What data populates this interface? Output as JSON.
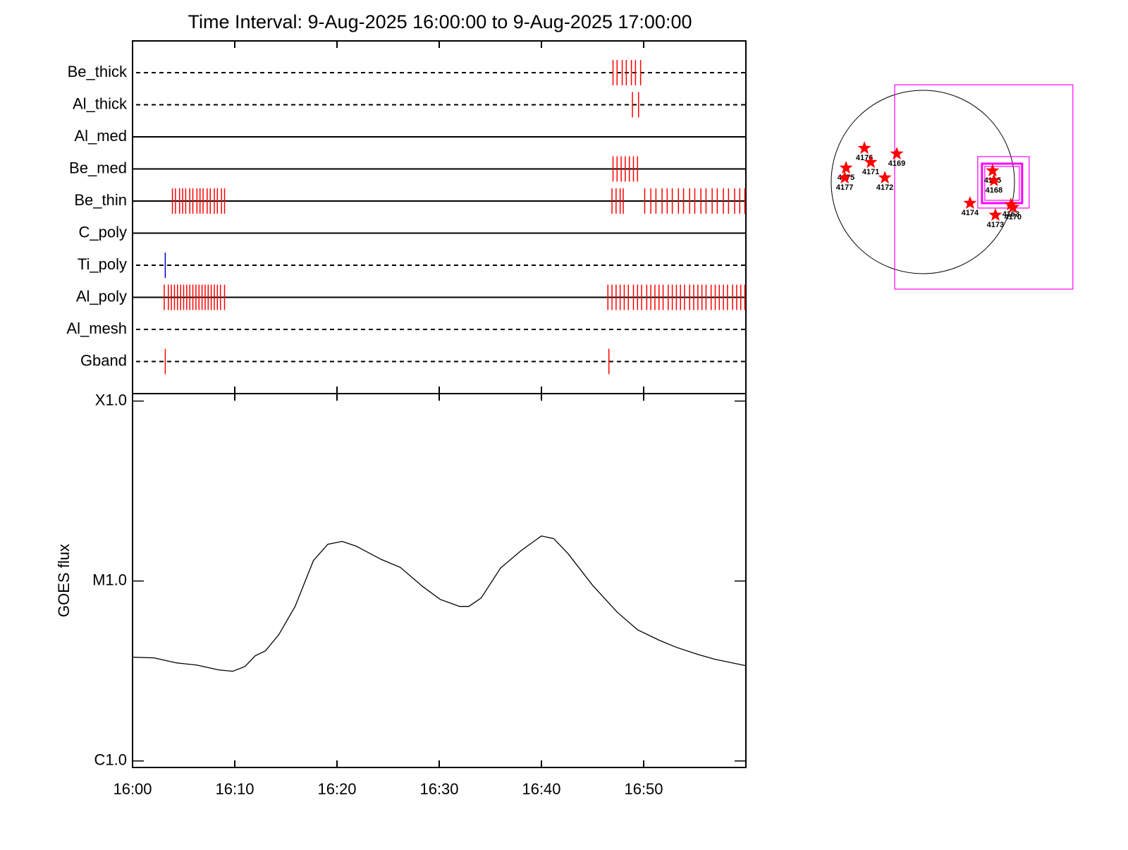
{
  "chart_data": [
    {
      "type": "event",
      "title": "Time Interval:  9-Aug-2025 16:00:00 to  9-Aug-2025 17:00:00",
      "xlim": [
        0,
        60
      ],
      "xticks": [
        0,
        10,
        20,
        30,
        40,
        50,
        60
      ],
      "rows": [
        {
          "name": "Be_thick",
          "style": "dashed",
          "color": "#ff0000",
          "events": [
            47.0,
            47.4,
            47.9,
            48.3,
            48.8,
            49.2,
            49.7
          ]
        },
        {
          "name": "Al_thick",
          "style": "dashed",
          "color": "#ff0000",
          "events": [
            48.9,
            49.5
          ]
        },
        {
          "name": "Al_med",
          "style": "solid",
          "color": "#ff0000",
          "events": []
        },
        {
          "name": "Be_med",
          "style": "solid",
          "color": "#ff0000",
          "events": [
            47.0,
            47.4,
            47.8,
            48.2,
            48.6,
            49.0,
            49.4
          ]
        },
        {
          "name": "Be_thin",
          "style": "solid",
          "color": "#ff0000",
          "events": [
            3.9,
            4.2,
            4.6,
            4.9,
            5.2,
            5.6,
            5.9,
            6.3,
            6.6,
            6.9,
            7.3,
            7.6,
            8.0,
            8.3,
            8.7,
            9.0,
            46.9,
            47.3,
            47.7,
            48.0,
            50.1,
            50.7,
            51.2,
            51.8,
            52.3,
            52.8,
            53.4,
            53.9,
            54.5,
            55.0,
            55.6,
            56.1,
            56.7,
            57.2,
            57.8,
            58.3,
            58.9,
            59.4,
            59.9
          ]
        },
        {
          "name": "C_poly",
          "style": "solid",
          "color": "#ff0000",
          "events": []
        },
        {
          "name": "Ti_poly",
          "style": "dashed",
          "color": "#0000cc",
          "events": [
            3.2
          ]
        },
        {
          "name": "Al_poly",
          "style": "solid",
          "color": "#ff0000",
          "events": [
            3.1,
            3.5,
            3.8,
            4.1,
            4.4,
            4.7,
            5.0,
            5.3,
            5.6,
            5.9,
            6.2,
            6.5,
            6.8,
            7.1,
            7.4,
            7.7,
            8.0,
            8.3,
            8.6,
            9.0,
            46.5,
            46.9,
            47.3,
            47.7,
            48.1,
            48.5,
            49.0,
            49.4,
            49.8,
            50.3,
            50.7,
            51.1,
            51.5,
            51.9,
            52.4,
            52.8,
            53.2,
            53.6,
            54.0,
            54.5,
            54.9,
            55.3,
            55.7,
            56.1,
            56.6,
            57.0,
            57.4,
            57.8,
            58.2,
            58.7,
            59.1,
            59.5,
            59.9
          ]
        },
        {
          "name": "Al_mesh",
          "style": "dashed",
          "color": "#ff0000",
          "events": []
        },
        {
          "name": "Gband",
          "style": "dashed",
          "color": "#ff0000",
          "events": [
            3.2,
            46.6
          ]
        }
      ]
    },
    {
      "type": "line",
      "y_label": "GOES flux",
      "log_y": true,
      "color": "#000000",
      "xlim": [
        0,
        60
      ],
      "xticks": [
        {
          "value": 0,
          "label": "16:00"
        },
        {
          "value": 10,
          "label": "16:10"
        },
        {
          "value": 20,
          "label": "16:20"
        },
        {
          "value": 30,
          "label": "16:30"
        },
        {
          "value": 40,
          "label": "16:40"
        },
        {
          "value": 50,
          "label": "16:50"
        },
        {
          "value": 60,
          "label": null
        }
      ],
      "ylim": [
        9.2e-07,
        0.00011
      ],
      "yticks": [
        {
          "value": 1e-06,
          "label": "C1.0"
        },
        {
          "value": 1e-05,
          "label": "M1.0"
        },
        {
          "value": 0.0001,
          "label": "X1.0"
        }
      ],
      "x": [
        0,
        2.1,
        4.3,
        6.3,
        8.4,
        9.8,
        11.0,
        12.0,
        13.0,
        14.3,
        15.9,
        17.7,
        19.1,
        20.5,
        21.9,
        24.3,
        26.2,
        28.4,
        30.1,
        32.0,
        32.9,
        34.1,
        36.0,
        38.1,
        40.0,
        41.2,
        42.6,
        45.0,
        47.4,
        49.4,
        51.5,
        53.2,
        55.3,
        57.0,
        60.0
      ],
      "values": [
        3.77e-06,
        3.74e-06,
        3.51e-06,
        3.41e-06,
        3.21e-06,
        3.15e-06,
        3.35e-06,
        3.84e-06,
        4.09e-06,
        5.03e-06,
        7.22e-06,
        1.3e-05,
        1.6e-05,
        1.66e-05,
        1.56e-05,
        1.32e-05,
        1.19e-05,
        9.3e-06,
        7.9e-06,
        7.22e-06,
        7.22e-06,
        8.05e-06,
        1.18e-05,
        1.49e-05,
        1.78e-05,
        1.72e-05,
        1.42e-05,
        9.47e-06,
        6.72e-06,
        5.36e-06,
        4.69e-06,
        4.28e-06,
        3.91e-06,
        3.67e-06,
        3.38e-06
      ]
    },
    {
      "type": "scatter",
      "solar_radius": 950,
      "disk_color": "#000000",
      "color": "#ff0000",
      "box_color": "#ff00ff",
      "labels": [
        "4176",
        "4171",
        "4169",
        "4175",
        "4177",
        "4172",
        "4165",
        "4168",
        "4174",
        "4173",
        "4163",
        "4170"
      ],
      "x": [
        -606,
        -540,
        -270,
        -796,
        -810,
        -394,
        723,
        737,
        489,
        752,
        913,
        934
      ],
      "y": [
        350,
        204,
        292,
        146,
        44,
        44,
        117,
        15,
        -219,
        -343,
        -234,
        -263
      ],
      "boxes": [
        [
          -292,
          1007,
          1555,
          -1110
        ],
        [
          569,
          263,
          1102,
          -270
        ],
        [
          613,
          190,
          1029,
          -219
        ],
        [
          642,
          161,
          1000,
          -190
        ]
      ]
    }
  ]
}
